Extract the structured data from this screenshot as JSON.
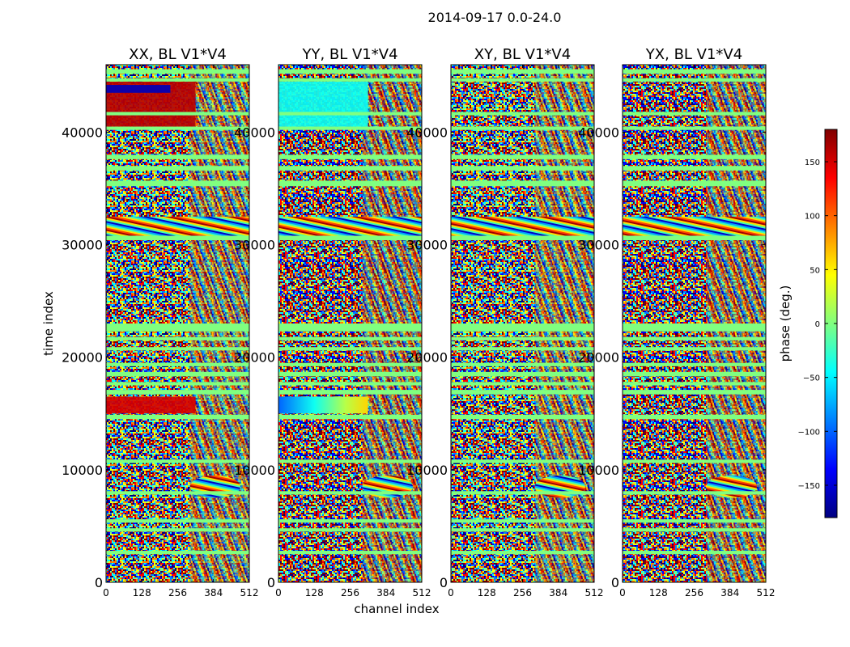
{
  "chart_data": {
    "type": "heatmap",
    "suptitle": "2014-09-17 0.0-24.0",
    "xlabel": "channel index",
    "ylabel": "time index",
    "xlim": [
      0,
      512
    ],
    "ylim": [
      0,
      46000
    ],
    "x_ticks": [
      0,
      128,
      256,
      384,
      512
    ],
    "y_ticks": [
      0,
      10000,
      20000,
      30000,
      40000
    ],
    "colorbar": {
      "label": "phase (deg.)",
      "range": [
        -180,
        180
      ],
      "ticks": [
        -150,
        -100,
        -50,
        0,
        50,
        100,
        150
      ],
      "tick_labels": [
        "−150",
        "−100",
        "−50",
        "0",
        "50",
        "100",
        "150"
      ],
      "colormap": "jet"
    },
    "panels": [
      {
        "title": "XX, BL V1*V4",
        "key": "XX"
      },
      {
        "title": "YY, BL V1*V4",
        "key": "YY"
      },
      {
        "title": "XY, BL V1*V4",
        "key": "XY"
      },
      {
        "title": "YX, BL V1*V4",
        "key": "YX"
      }
    ],
    "flagged_time_bands": [
      [
        45200,
        45600
      ],
      [
        44500,
        44800
      ],
      [
        41500,
        41800
      ],
      [
        40200,
        40500
      ],
      [
        37600,
        38000
      ],
      [
        36600,
        37000
      ],
      [
        35200,
        35700
      ],
      [
        30400,
        30800
      ],
      [
        22300,
        23000
      ],
      [
        21500,
        21800
      ],
      [
        20600,
        20900
      ],
      [
        19200,
        19500
      ],
      [
        18300,
        18700
      ],
      [
        17500,
        17800
      ],
      [
        16700,
        17100
      ],
      [
        14500,
        14900
      ],
      [
        10600,
        10900
      ],
      [
        7800,
        8100
      ],
      [
        5300,
        5600
      ],
      [
        4500,
        4800
      ],
      [
        2500,
        2800
      ]
    ],
    "features": [
      {
        "panel": "XX",
        "time_range": [
          40500,
          44500
        ],
        "channel_range": [
          0,
          320
        ],
        "phase_deg": 160,
        "kind": "strong-red-block"
      },
      {
        "panel": "XX",
        "time_range": [
          43500,
          44200
        ],
        "channel_range": [
          0,
          230
        ],
        "phase_deg": -160,
        "kind": "blue-streak"
      },
      {
        "panel": "XX",
        "time_range": [
          15000,
          16500
        ],
        "channel_range": [
          0,
          320
        ],
        "phase_deg": 150,
        "kind": "red-block"
      },
      {
        "panel": "YY",
        "time_range": [
          40500,
          44500
        ],
        "channel_range": [
          0,
          320
        ],
        "phase_deg": -40,
        "kind": "cyan-block"
      },
      {
        "panel": "YY",
        "time_range": [
          15000,
          16500
        ],
        "channel_range": [
          0,
          320
        ],
        "phase_deg_start": -100,
        "phase_deg_end": 60,
        "kind": "gradient-block"
      },
      {
        "panel": "all",
        "time_range": [
          30600,
          32500
        ],
        "kind": "fringe-wedge"
      },
      {
        "panel": "all",
        "time_range": [
          7500,
          9500
        ],
        "channel_range": [
          300,
          480
        ],
        "kind": "fringe-blob"
      }
    ]
  }
}
